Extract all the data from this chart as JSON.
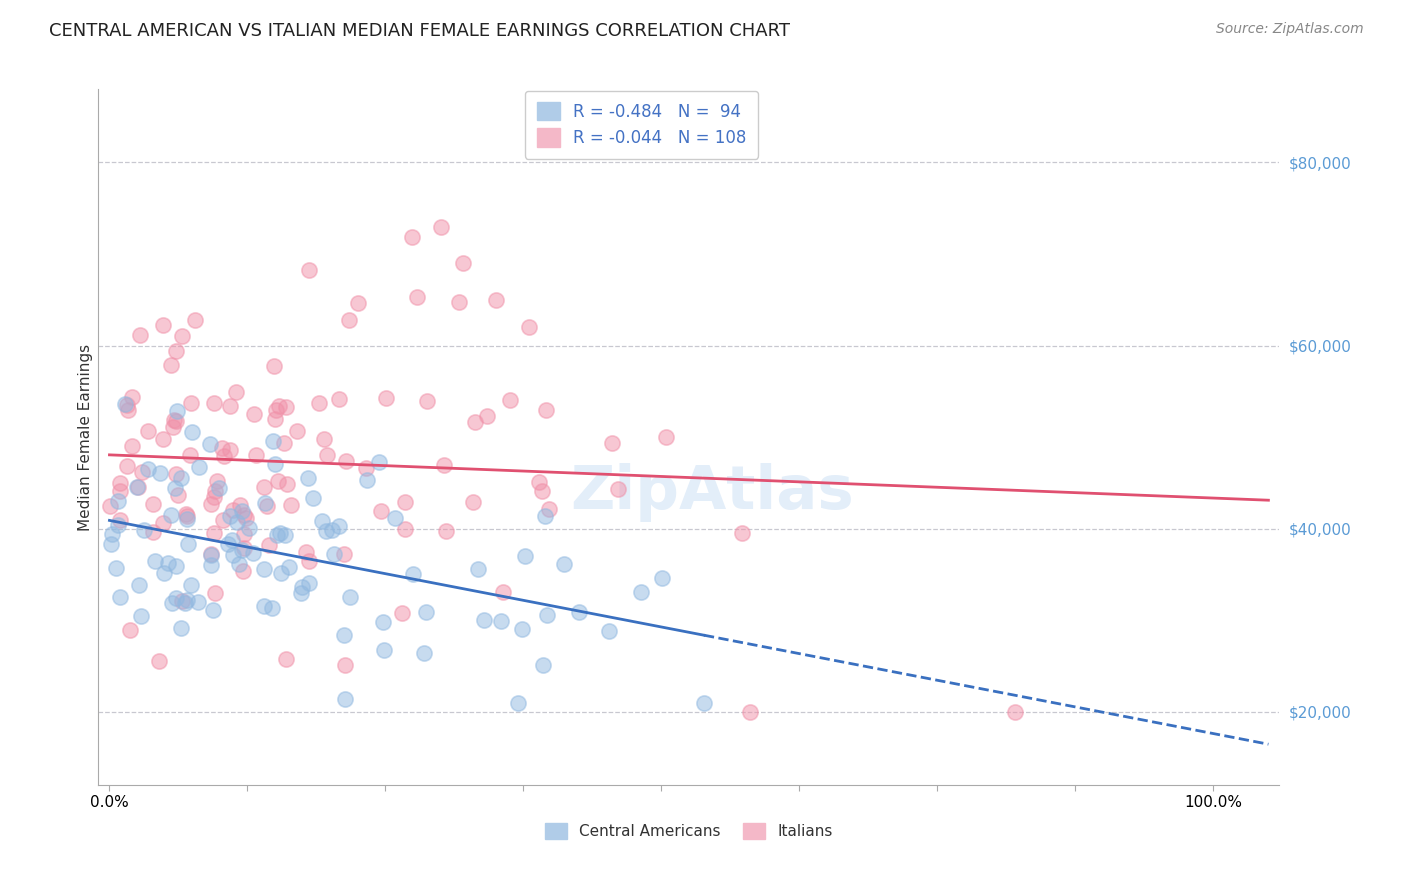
{
  "title": "CENTRAL AMERICAN VS ITALIAN MEDIAN FEMALE EARNINGS CORRELATION CHART",
  "source": "Source: ZipAtlas.com",
  "ylabel": "Median Female Earnings",
  "background_color": "#ffffff",
  "grid_color": "#c8c8d0",
  "watermark": "ZipAtlas",
  "ytick_labels": [
    "$20,000",
    "$40,000",
    "$60,000",
    "$80,000"
  ],
  "ytick_values": [
    20000,
    40000,
    60000,
    80000
  ],
  "xtick_labels": [
    "0.0%",
    "100.0%"
  ],
  "series": [
    {
      "name": "Central Americans",
      "color": "#90b8e0",
      "line_color": "#3a70c0",
      "R": -0.484,
      "N": 94
    },
    {
      "name": "Italians",
      "color": "#f090a8",
      "line_color": "#e05070",
      "R": -0.044,
      "N": 108
    }
  ],
  "legend_color": "#4472c4",
  "title_fontsize": 13,
  "source_fontsize": 10,
  "axis_label_fontsize": 11,
  "tick_fontsize": 11,
  "legend_fontsize": 12,
  "ytick_right_color": "#5b9bd5",
  "dot_alpha": 0.5,
  "dot_size": 120,
  "dot_linewidth": 1.2,
  "xlim": [
    -0.01,
    1.06
  ],
  "ylim": [
    12000,
    88000
  ]
}
